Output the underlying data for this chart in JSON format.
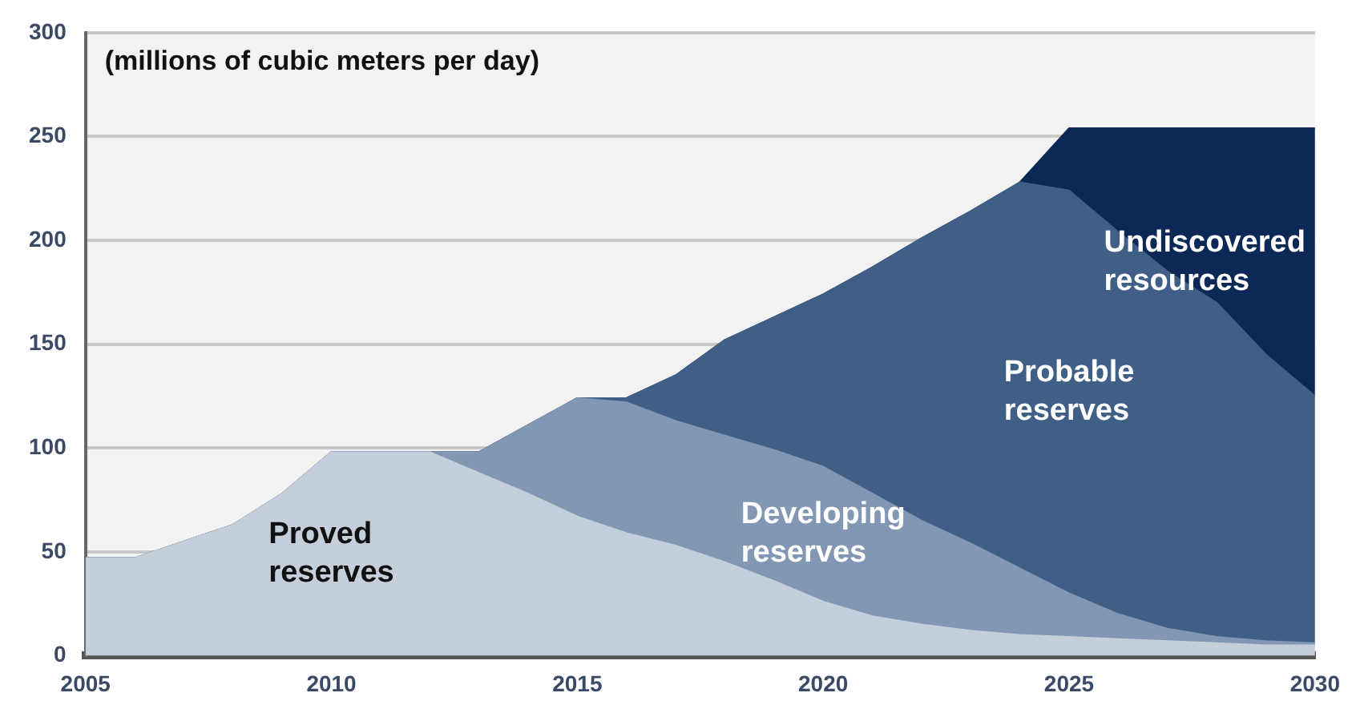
{
  "chart_data": {
    "type": "area",
    "stacked": true,
    "ylabel": "(millions of cubic meters per day)",
    "x": [
      2005,
      2006,
      2007,
      2008,
      2009,
      2010,
      2011,
      2012,
      2013,
      2014,
      2015,
      2016,
      2017,
      2018,
      2019,
      2020,
      2021,
      2022,
      2023,
      2024,
      2025,
      2026,
      2027,
      2028,
      2029,
      2030
    ],
    "series": [
      {
        "name": "Proved reserves",
        "color": "#c5cedb",
        "values": [
          47,
          47,
          55,
          63,
          78,
          98,
          98,
          98,
          88,
          78,
          67,
          59,
          53,
          45,
          36,
          26,
          19,
          15,
          12,
          10,
          9,
          8,
          7,
          6,
          5,
          5
        ]
      },
      {
        "name": "Developing reserves",
        "color": "#8197b3",
        "values": [
          0,
          0,
          0,
          0,
          0,
          0,
          0,
          0,
          10,
          33,
          57,
          63,
          60,
          61,
          63,
          65,
          59,
          50,
          42,
          32,
          21,
          12,
          6,
          3,
          2,
          1
        ]
      },
      {
        "name": "Probable reserves",
        "color": "#3f5f87",
        "values": [
          0,
          0,
          0,
          0,
          0,
          0,
          0,
          0,
          0,
          0,
          0,
          2,
          22,
          46,
          64,
          83,
          109,
          136,
          160,
          186,
          194,
          184,
          172,
          161,
          138,
          119
        ]
      },
      {
        "name": "Undiscovered resources",
        "color": "#0b2856",
        "values": [
          0,
          0,
          0,
          0,
          0,
          0,
          0,
          0,
          0,
          0,
          0,
          0,
          0,
          0,
          0,
          0,
          0,
          0,
          0,
          0,
          30,
          50,
          69,
          84,
          109,
          129
        ]
      }
    ],
    "xlim": [
      2005,
      2030
    ],
    "xticks": [
      2005,
      2010,
      2015,
      2020,
      2025,
      2030
    ],
    "ylim": [
      0,
      300
    ],
    "yticks": [
      0,
      50,
      100,
      150,
      200,
      250,
      300
    ],
    "grid": "y",
    "legend": false,
    "marker": "none",
    "line_style": "solid"
  }
}
